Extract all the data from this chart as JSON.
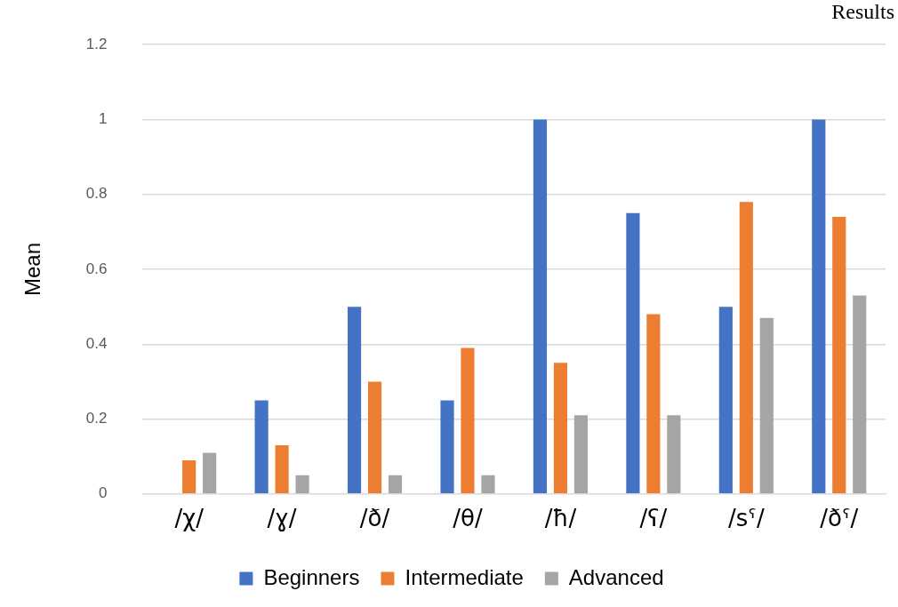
{
  "chart_data": {
    "type": "bar",
    "ylabel": "Mean",
    "annotations": [
      "Results"
    ],
    "categories": [
      "/χ/",
      "/ɣ/",
      "/ð/",
      "/θ/",
      "/ħ/",
      "/ʕ/",
      "/sˤ/",
      "/ðˤ/"
    ],
    "series": [
      {
        "name": "Beginners",
        "color": "#4472c4",
        "values": [
          0,
          0.25,
          0.5,
          0.25,
          1,
          0.75,
          0.5,
          1
        ]
      },
      {
        "name": "Intermediate",
        "color": "#ed7d31",
        "values": [
          0.09,
          0.13,
          0.3,
          0.39,
          0.35,
          0.48,
          0.78,
          0.74
        ]
      },
      {
        "name": "Advanced",
        "color": "#a5a5a5",
        "values": [
          0.11,
          0.05,
          0.05,
          0.05,
          0.21,
          0.21,
          0.47,
          0.53
        ]
      }
    ],
    "ylim": [
      0,
      1.2
    ],
    "yticks": [
      0,
      0.2,
      0.4,
      0.6,
      0.8,
      1,
      1.2
    ],
    "grid": "y",
    "legend": "bottom"
  }
}
